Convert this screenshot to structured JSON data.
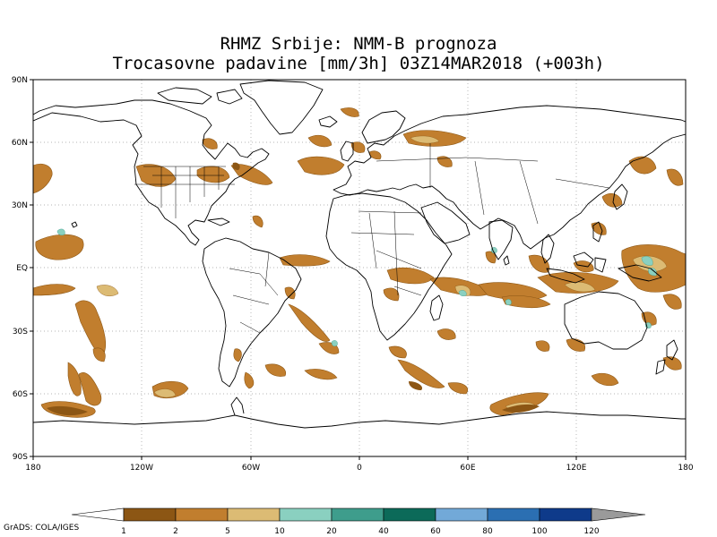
{
  "title_line1": "RHMZ Srbije: NMM-B prognoza",
  "title_line2": "Trocasovne padavine [mm/3h] 03Z14MAR2018 (+003h)",
  "lat_labels": [
    "90N",
    "60N",
    "30N",
    "EQ",
    "30S",
    "60S",
    "90S"
  ],
  "lon_labels": [
    "180",
    "120W",
    "60W",
    "0",
    "60E",
    "120E",
    "180"
  ],
  "colorbar": {
    "levels": [
      "1",
      "2",
      "5",
      "10",
      "20",
      "40",
      "60",
      "80",
      "100",
      "120"
    ],
    "colors": [
      "#8c5614",
      "#c17e2e",
      "#dcbb74",
      "#8ad0c0",
      "#3e9d8c",
      "#0c6a59",
      "#72a9d8",
      "#2b6fb2",
      "#0e3a8a"
    ],
    "under_color": "#ffffff",
    "over_color": "#9a9a9a"
  },
  "credit": "GrADS: COLA/IGES"
}
